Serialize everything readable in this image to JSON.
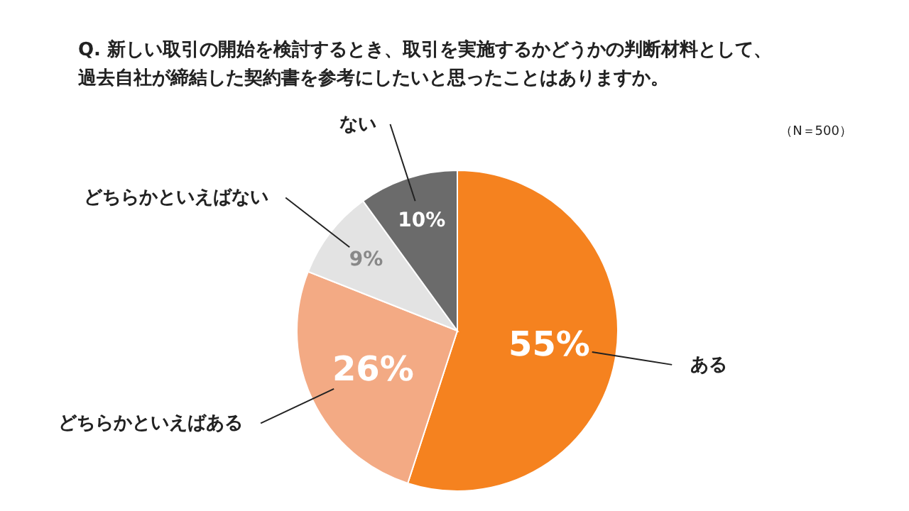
{
  "chart_data": {
    "type": "pie",
    "title": "Q. 新しい取引の開始を検討するとき、取引を実施するかどうかの判断材料として、過去自社が締結した契約書を参考にしたいと思ったことはありますか。",
    "annotations": [
      "（N＝500）"
    ],
    "categories": [
      "ある",
      "どちらかといえばある",
      "どちらかといえばない",
      "ない"
    ],
    "values": [
      55,
      26,
      9,
      10
    ],
    "colors": [
      "#f5821f",
      "#f3aa84",
      "#e3e3e3",
      "#6b6b6b"
    ],
    "value_labels": [
      "55%",
      "26%",
      "9%",
      "10%"
    ]
  }
}
